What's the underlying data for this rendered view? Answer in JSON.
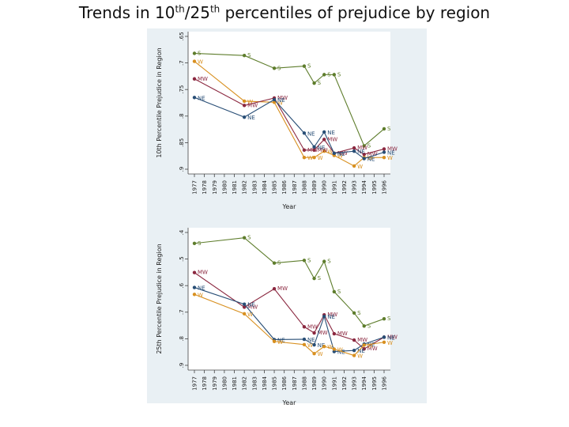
{
  "title": {
    "prefix": "Trends in 10",
    "sup1": "th",
    "mid": "/25",
    "sup2": "th",
    "suffix": " percentiles  of prejudice by region"
  },
  "chart_data": [
    {
      "type": "line",
      "ylabel": "10th Percentile Prejudice in Region",
      "xlabel": "Year",
      "x_ticks": [
        "1977",
        "1978",
        "1979",
        "1980",
        "1981",
        "1982",
        "1983",
        "1984",
        "1985",
        "1986",
        "1987",
        "1988",
        "1989",
        "1990",
        "1991",
        "1992",
        "1993",
        "1994",
        "1995",
        "1996"
      ],
      "y_ticks": [
        ".65",
        ".7",
        ".75",
        ".8",
        ".85",
        ".9"
      ],
      "ylim": [
        0.9,
        0.65
      ],
      "y_reversed": true,
      "series": [
        {
          "name": "S",
          "color": "#5e7d2c",
          "x": [
            1977,
            1982,
            1985,
            1988,
            1989,
            1990,
            1991,
            1994,
            1996
          ],
          "y": [
            0.682,
            0.686,
            0.71,
            0.706,
            0.738,
            0.722,
            0.722,
            0.856,
            0.824
          ]
        },
        {
          "name": "W",
          "color": "#d89020",
          "x": [
            1977,
            1982,
            1985,
            1988,
            1989,
            1990,
            1991,
            1993,
            1994,
            1996
          ],
          "y": [
            0.697,
            0.772,
            0.774,
            0.878,
            0.878,
            0.866,
            0.874,
            0.894,
            0.878,
            0.878
          ]
        },
        {
          "name": "MW",
          "color": "#8b2840",
          "x": [
            1977,
            1982,
            1985,
            1988,
            1989,
            1990,
            1991,
            1993,
            1994,
            1996
          ],
          "y": [
            0.73,
            0.78,
            0.766,
            0.864,
            0.864,
            0.844,
            0.87,
            0.86,
            0.872,
            0.862
          ]
        },
        {
          "name": "NE",
          "color": "#284e76",
          "x": [
            1977,
            1982,
            1985,
            1988,
            1989,
            1990,
            1991,
            1993,
            1994,
            1996
          ],
          "y": [
            0.765,
            0.802,
            0.769,
            0.832,
            0.858,
            0.83,
            0.87,
            0.866,
            0.88,
            0.868
          ]
        }
      ]
    },
    {
      "type": "line",
      "ylabel": "25th Percentile Prejudice in Region",
      "xlabel": "Year",
      "x_ticks": [
        "1977",
        "1978",
        "1979",
        "1980",
        "1981",
        "1982",
        "1983",
        "1984",
        "1985",
        "1986",
        "1987",
        "1988",
        "1989",
        "1990",
        "1991",
        "1992",
        "1993",
        "1994",
        "1995",
        "1996"
      ],
      "y_ticks": [
        ".4",
        ".5",
        ".6",
        ".7",
        ".8",
        ".9"
      ],
      "ylim": [
        0.9,
        0.4
      ],
      "y_reversed": true,
      "series": [
        {
          "name": "S",
          "color": "#5e7d2c",
          "x": [
            1977,
            1982,
            1985,
            1988,
            1989,
            1990,
            1991,
            1993,
            1994,
            1996
          ],
          "y": [
            0.441,
            0.42,
            0.515,
            0.505,
            0.573,
            0.509,
            0.623,
            0.703,
            0.752,
            0.725
          ]
        },
        {
          "name": "MW",
          "color": "#8b2840",
          "x": [
            1977,
            1982,
            1985,
            1988,
            1989,
            1990,
            1991,
            1993,
            1994,
            1996
          ],
          "y": [
            0.551,
            0.681,
            0.612,
            0.755,
            0.778,
            0.71,
            0.781,
            0.805,
            0.838,
            0.794
          ]
        },
        {
          "name": "NE",
          "color": "#284e76",
          "x": [
            1977,
            1982,
            1985,
            1988,
            1989,
            1990,
            1991,
            1993,
            1994,
            1996
          ],
          "y": [
            0.607,
            0.67,
            0.803,
            0.802,
            0.823,
            0.716,
            0.848,
            0.844,
            0.82,
            0.794
          ]
        },
        {
          "name": "W",
          "color": "#d89020",
          "x": [
            1977,
            1982,
            1985,
            1988,
            1989,
            1990,
            1991,
            1993,
            1994,
            1996
          ],
          "y": [
            0.633,
            0.706,
            0.81,
            0.822,
            0.856,
            0.829,
            0.839,
            0.863,
            0.824,
            0.813
          ]
        }
      ]
    }
  ]
}
